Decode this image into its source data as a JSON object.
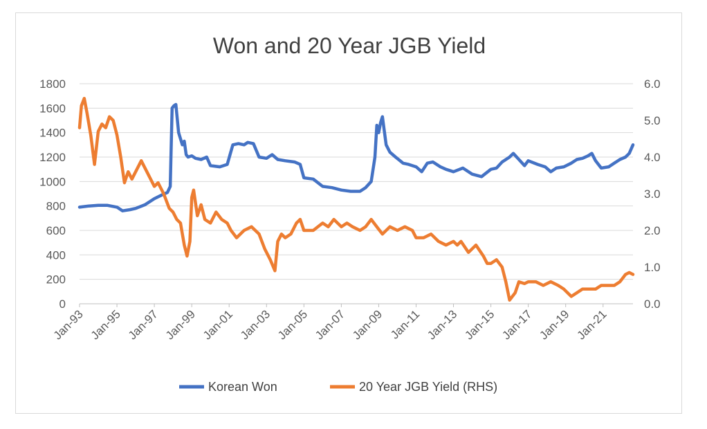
{
  "chart_data": {
    "type": "line",
    "title": "Won and 20 Year JGB Yield",
    "x_tick_labels": [
      "Jan-93",
      "Jan-95",
      "Jan-97",
      "Jan-99",
      "Jan-01",
      "Jan-03",
      "Jan-05",
      "Jan-07",
      "Jan-09",
      "Jan-11",
      "Jan-13",
      "Jan-15",
      "Jan-17",
      "Jan-19",
      "Jan-21"
    ],
    "xlim": [
      1993.0,
      2022.6
    ],
    "y_left": {
      "ticks": [
        "0",
        "200",
        "400",
        "600",
        "800",
        "1000",
        "1200",
        "1400",
        "1600",
        "1800"
      ],
      "lim": [
        0,
        1800
      ]
    },
    "y_right": {
      "ticks": [
        "0.0",
        "1.0",
        "2.0",
        "3.0",
        "4.0",
        "5.0",
        "6.0"
      ],
      "lim": [
        0,
        6
      ]
    },
    "grid": true,
    "legend_position": "bottom",
    "series": [
      {
        "name": "Korean Won",
        "axis": "left",
        "color": "#4472C4",
        "x": [
          1993.0,
          1993.5,
          1994.0,
          1994.5,
          1995.0,
          1995.3,
          1995.7,
          1996.0,
          1996.5,
          1997.0,
          1997.4,
          1997.7,
          1997.85,
          1997.95,
          1998.05,
          1998.15,
          1998.3,
          1998.5,
          1998.6,
          1998.7,
          1998.8,
          1999.0,
          1999.2,
          1999.5,
          1999.8,
          2000.0,
          2000.5,
          2000.9,
          2001.2,
          2001.5,
          2001.8,
          2002.0,
          2002.3,
          2002.6,
          2003.0,
          2003.3,
          2003.6,
          2004.0,
          2004.5,
          2004.8,
          2005.0,
          2005.5,
          2006.0,
          2006.5,
          2007.0,
          2007.5,
          2008.0,
          2008.3,
          2008.6,
          2008.8,
          2008.9,
          2009.0,
          2009.1,
          2009.2,
          2009.4,
          2009.6,
          2009.9,
          2010.3,
          2010.6,
          2011.0,
          2011.3,
          2011.6,
          2011.9,
          2012.3,
          2012.6,
          2013.0,
          2013.5,
          2014.0,
          2014.5,
          2015.0,
          2015.3,
          2015.6,
          2016.0,
          2016.2,
          2016.5,
          2016.8,
          2017.0,
          2017.5,
          2017.9,
          2018.2,
          2018.5,
          2018.9,
          2019.3,
          2019.6,
          2019.9,
          2020.2,
          2020.4,
          2020.6,
          2020.9,
          2021.3,
          2021.6,
          2021.9,
          2022.2,
          2022.4,
          2022.6
        ],
        "values": [
          790,
          800,
          805,
          805,
          790,
          760,
          770,
          780,
          810,
          860,
          890,
          910,
          960,
          1600,
          1620,
          1630,
          1400,
          1300,
          1330,
          1220,
          1200,
          1210,
          1190,
          1180,
          1200,
          1130,
          1120,
          1140,
          1300,
          1310,
          1300,
          1320,
          1310,
          1200,
          1190,
          1220,
          1180,
          1170,
          1160,
          1140,
          1030,
          1020,
          960,
          950,
          930,
          920,
          920,
          950,
          1000,
          1200,
          1460,
          1400,
          1480,
          1530,
          1300,
          1240,
          1200,
          1150,
          1140,
          1120,
          1080,
          1150,
          1160,
          1120,
          1100,
          1080,
          1110,
          1060,
          1040,
          1100,
          1110,
          1160,
          1200,
          1230,
          1180,
          1130,
          1170,
          1140,
          1120,
          1080,
          1110,
          1120,
          1150,
          1180,
          1190,
          1210,
          1230,
          1170,
          1110,
          1120,
          1150,
          1180,
          1200,
          1230,
          1300
        ],
        "note_values_unit": "KRW per USD"
      },
      {
        "name": "20 Year JGB Yield (RHS)",
        "axis": "right",
        "color": "#ED7D31",
        "x": [
          1993.0,
          1993.1,
          1993.25,
          1993.4,
          1993.6,
          1993.8,
          1994.0,
          1994.2,
          1994.4,
          1994.6,
          1994.8,
          1995.0,
          1995.2,
          1995.4,
          1995.6,
          1995.8,
          1996.0,
          1996.3,
          1996.6,
          1997.0,
          1997.2,
          1997.5,
          1997.8,
          1998.0,
          1998.2,
          1998.4,
          1998.6,
          1998.75,
          1998.9,
          1999.0,
          1999.1,
          1999.3,
          1999.5,
          1999.7,
          2000.0,
          2000.3,
          2000.6,
          2000.9,
          2001.1,
          2001.4,
          2001.8,
          2002.2,
          2002.6,
          2002.9,
          2003.2,
          2003.45,
          2003.6,
          2003.8,
          2004.0,
          2004.3,
          2004.6,
          2004.8,
          2005.0,
          2005.5,
          2006.0,
          2006.3,
          2006.6,
          2007.0,
          2007.3,
          2007.6,
          2008.0,
          2008.3,
          2008.6,
          2008.9,
          2009.2,
          2009.6,
          2010.0,
          2010.4,
          2010.8,
          2011.0,
          2011.4,
          2011.8,
          2012.2,
          2012.6,
          2013.0,
          2013.2,
          2013.4,
          2013.8,
          2014.2,
          2014.6,
          2014.8,
          2015.0,
          2015.3,
          2015.6,
          2015.8,
          2016.0,
          2016.3,
          2016.5,
          2016.8,
          2017.0,
          2017.4,
          2017.8,
          2018.2,
          2018.6,
          2018.9,
          2019.3,
          2019.6,
          2019.9,
          2020.2,
          2020.6,
          2020.9,
          2021.3,
          2021.6,
          2021.9,
          2022.2,
          2022.4,
          2022.6
        ],
        "values": [
          4.8,
          5.4,
          5.6,
          5.2,
          4.6,
          3.8,
          4.7,
          4.9,
          4.8,
          5.1,
          5.0,
          4.6,
          4.0,
          3.3,
          3.6,
          3.4,
          3.6,
          3.9,
          3.6,
          3.2,
          3.3,
          3.0,
          2.6,
          2.5,
          2.3,
          2.2,
          1.6,
          1.3,
          1.7,
          2.9,
          3.1,
          2.4,
          2.7,
          2.3,
          2.2,
          2.5,
          2.3,
          2.2,
          2.0,
          1.8,
          2.0,
          2.1,
          1.9,
          1.5,
          1.2,
          0.9,
          1.7,
          1.9,
          1.8,
          1.9,
          2.2,
          2.3,
          2.0,
          2.0,
          2.2,
          2.1,
          2.3,
          2.1,
          2.2,
          2.1,
          2.0,
          2.1,
          2.3,
          2.1,
          1.9,
          2.1,
          2.0,
          2.1,
          2.0,
          1.8,
          1.8,
          1.9,
          1.7,
          1.6,
          1.7,
          1.6,
          1.7,
          1.4,
          1.6,
          1.3,
          1.1,
          1.1,
          1.2,
          1.0,
          0.6,
          0.1,
          0.3,
          0.6,
          0.55,
          0.6,
          0.6,
          0.5,
          0.6,
          0.5,
          0.4,
          0.2,
          0.3,
          0.4,
          0.4,
          0.4,
          0.5,
          0.5,
          0.5,
          0.6,
          0.8,
          0.85,
          0.8
        ],
        "note_values_unit": "percent"
      }
    ]
  }
}
